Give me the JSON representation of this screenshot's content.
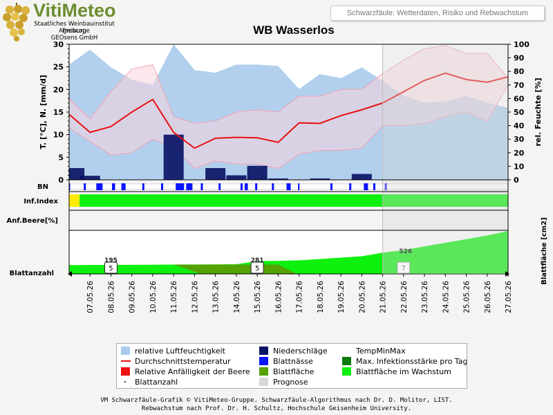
{
  "logo": {
    "title": "VitiMeteo",
    "lines": [
      "Staatliches Weinbauinstitut Freiburg",
      "Agroscope",
      "GEOsens GmbH"
    ]
  },
  "header": {
    "subtitle": "Schwarzfäule: Wetterdaten, Risiko und Rebwachstum"
  },
  "colors": {
    "humidity": "#aacbeb",
    "temp_line": "#e81010",
    "temp_band": "#f9d4dd",
    "rain": "#0b1466",
    "wetness": "#0a14ff",
    "infection_max": "#0c7a0c",
    "susceptibility": "#ee1111",
    "leaf_area": "#55a205",
    "leaf_area_growing": "#0ef00e",
    "forecast": "#d8d8d8"
  },
  "chart_data": {
    "type": "line",
    "title": "WB Wasserlos",
    "dates": [
      "07.05.26",
      "08.05.26",
      "09.05.26",
      "10.05.26",
      "11.05.26",
      "12.05.26",
      "13.05.26",
      "14.05.26",
      "15.05.26",
      "16.05.26",
      "17.05.26",
      "18.05.26",
      "19.05.26",
      "20.05.26",
      "21.05.26",
      "22.05.26",
      "23.05.26",
      "24.05.26",
      "25.05.26",
      "26.05.26",
      "27.05.26"
    ],
    "x_day_range": [
      6,
      27
    ],
    "forecast_from_day": 21.0,
    "left_axis": {
      "label": "T. [°C], N. [mm/d]",
      "min": 0,
      "max": 30,
      "ticks": [
        0,
        5,
        10,
        15,
        20,
        25,
        30
      ]
    },
    "right_axis": {
      "label": "rel. Feuchte [%]",
      "min": 0,
      "max": 100,
      "ticks": [
        0,
        10,
        20,
        30,
        40,
        50,
        60,
        70,
        80,
        90,
        100
      ]
    },
    "series": {
      "humidity": {
        "x": [
          6,
          7,
          8,
          9,
          10,
          11,
          12,
          13,
          14,
          15,
          16,
          17,
          18,
          19,
          20,
          21,
          22,
          23,
          24,
          25,
          26,
          27
        ],
        "values": [
          85,
          96,
          83,
          74,
          70,
          100,
          81,
          79,
          85,
          85,
          84,
          67,
          78,
          75,
          83,
          73,
          62,
          57,
          58,
          62,
          57,
          53
        ]
      },
      "temp_mean": {
        "x": [
          6,
          7,
          8,
          9,
          10,
          11,
          12,
          13,
          14,
          15,
          16,
          17,
          18,
          19,
          20,
          21,
          22,
          23,
          24,
          25,
          26,
          27
        ],
        "values": [
          14.5,
          10.5,
          11.8,
          15.0,
          17.8,
          10.5,
          7.0,
          9.2,
          9.4,
          9.3,
          8.3,
          12.6,
          12.5,
          14.2,
          15.5,
          17.0,
          19.5,
          22.0,
          23.6,
          22.2,
          21.6,
          22.8
        ]
      },
      "temp_max": {
        "x": [
          6,
          7,
          8,
          9,
          10,
          11,
          12,
          13,
          14,
          15,
          16,
          17,
          18,
          19,
          20,
          21,
          22,
          23,
          24,
          25,
          26,
          27
        ],
        "values": [
          18,
          13.5,
          19.5,
          24.5,
          25.5,
          14,
          12.5,
          13,
          15,
          15.5,
          15,
          18.5,
          18.5,
          20,
          20,
          23.5,
          26.5,
          29,
          29.7,
          28,
          28,
          22.5
        ]
      },
      "temp_min": {
        "x": [
          6,
          7,
          8,
          9,
          10,
          11,
          12,
          13,
          14,
          15,
          16,
          17,
          18,
          19,
          20,
          21,
          22,
          23,
          24,
          25,
          26,
          27
        ],
        "values": [
          11.5,
          8.5,
          5.5,
          6,
          9,
          7.3,
          2.5,
          4.2,
          3.5,
          3.5,
          2.5,
          5.7,
          6.5,
          6.5,
          7,
          12,
          12,
          12.5,
          14,
          15,
          13,
          21
        ]
      },
      "precipitation": {
        "x": [
          6.25,
          7,
          8,
          9,
          10,
          11,
          12,
          13,
          14,
          15,
          16,
          17,
          18,
          19,
          20,
          21,
          22,
          23,
          24,
          25,
          26
        ],
        "values": [
          2.6,
          0.9,
          0,
          0,
          0,
          10,
          0,
          2.6,
          1.0,
          3.1,
          0.3,
          0,
          0.3,
          0,
          1.3,
          0,
          0,
          0,
          0,
          0,
          0
        ]
      }
    },
    "leaf_wetness_intervals": [
      [
        6.0,
        6.03
      ],
      [
        6.7,
        6.8
      ],
      [
        7.3,
        7.6
      ],
      [
        8.05,
        8.2
      ],
      [
        8.5,
        8.7
      ],
      [
        9.5,
        9.6
      ],
      [
        10.4,
        10.5
      ],
      [
        11.1,
        11.5
      ],
      [
        11.6,
        11.9
      ],
      [
        12.3,
        12.4
      ],
      [
        13.15,
        13.25
      ],
      [
        14.2,
        14.3
      ],
      [
        14.4,
        14.55
      ],
      [
        14.9,
        15.0
      ],
      [
        15.7,
        15.8
      ],
      [
        16.4,
        16.6
      ],
      [
        16.95,
        17.02
      ],
      [
        18.5,
        18.6
      ],
      [
        19.4,
        19.5
      ],
      [
        20.1,
        20.3
      ],
      [
        20.55,
        20.65
      ],
      [
        21.1,
        21.2
      ]
    ],
    "infection_index": {
      "label": "Inf.Index",
      "low_until_day": 6.5
    },
    "berry_susceptibility_label": "Anf.Beere[%]",
    "leaf_area_axis_label": "Blattfläche [cm2]",
    "leaf_count_label": "Blattanzahl",
    "leaf_count_markers": [
      {
        "day": 8,
        "value": "5"
      },
      {
        "day": 15,
        "value": "5"
      },
      {
        "day": 22,
        "value": "7"
      }
    ],
    "leaf_area_labels": [
      {
        "day": 8,
        "value": "195"
      },
      {
        "day": 15,
        "value": "281"
      },
      {
        "day": 22,
        "value": "526"
      }
    ],
    "leaf_area": {
      "x": [
        6,
        7,
        8,
        9,
        10,
        11,
        12,
        13,
        14,
        15,
        16,
        17,
        18,
        19,
        20,
        21,
        22,
        23,
        24,
        25,
        26,
        27
      ],
      "values": [
        195,
        197,
        199,
        201,
        203,
        206,
        208,
        210,
        214,
        281,
        290,
        300,
        330,
        360,
        390,
        470,
        526,
        610,
        690,
        770,
        850,
        950
      ]
    },
    "leaf_area_max": 950
  },
  "legend": {
    "items": [
      {
        "label": "relative Luftfeuchtigkeit",
        "swatch": "humidity"
      },
      {
        "label": "Niederschläge",
        "swatch": "rain"
      },
      {
        "label": "TempMinMax",
        "swatch": "none"
      },
      {
        "label": "Durchschnittstemperatur",
        "swatch": "line"
      },
      {
        "label": "Blattnässe",
        "swatch": "wetness"
      },
      {
        "label": "Max. Infektionsstärke pro Tag",
        "swatch": "infection_max"
      },
      {
        "label": "Relative Anfälligkeit der Beere",
        "swatch": "susceptibility"
      },
      {
        "label": "Blattfläche",
        "swatch": "leaf_area"
      },
      {
        "label": "Blattfläche im Wachstum",
        "swatch": "leaf_area_growing"
      },
      {
        "label": "Blattanzahl",
        "swatch": "dot"
      },
      {
        "label": "Prognose",
        "swatch": "forecast"
      }
    ]
  },
  "footer": {
    "line1": "VM Schwarzfäule-Grafik © VitiMeteo-Gruppe. Schwarzfäule-Algorithmus nach Dr. D. Molitor, LIST.",
    "line2": "Rebwachstum nach Prof. Dr. H. Schultz, Hochschule Geisenheim University."
  }
}
